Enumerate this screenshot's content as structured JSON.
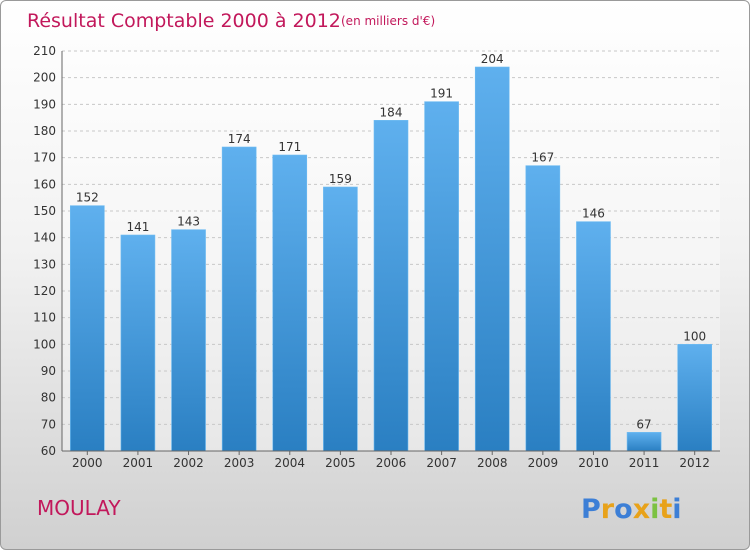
{
  "chart_data": {
    "type": "bar",
    "title": "Résultat Comptable 2000 à 2012",
    "subtitle": "(en milliers d'€)",
    "categories": [
      "2000",
      "2001",
      "2002",
      "2003",
      "2004",
      "2005",
      "2006",
      "2007",
      "2008",
      "2009",
      "2010",
      "2011",
      "2012"
    ],
    "values": [
      152,
      141,
      143,
      174,
      171,
      159,
      184,
      191,
      204,
      167,
      146,
      67,
      100
    ],
    "ylim": [
      60,
      210
    ],
    "yticks": [
      60,
      70,
      80,
      90,
      100,
      110,
      120,
      130,
      140,
      150,
      160,
      170,
      180,
      190,
      200,
      210
    ],
    "grid": true,
    "xlabel": "",
    "ylabel": ""
  },
  "commune": "MOULAY",
  "logo": {
    "letters": [
      "P",
      "r",
      "o",
      "x",
      "i",
      "t",
      "i"
    ],
    "colors": [
      "#3d7fd6",
      "#e8a21a",
      "#3d7fd6",
      "#e8a21a",
      "#7cc242",
      "#e8a21a",
      "#3d7fd6"
    ]
  },
  "colors": {
    "bar_top": "#5fb0ee",
    "bar_bottom": "#2a7fc2",
    "accent": "#c2185b"
  }
}
